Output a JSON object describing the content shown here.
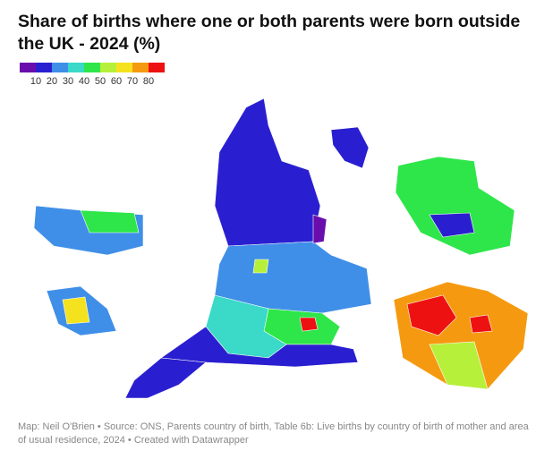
{
  "header": {
    "title": "Share of births where one or both parents were born outside the UK - 2024 (%)"
  },
  "legend": {
    "colors": [
      "#6a0dad",
      "#2a1fd0",
      "#3f8fe8",
      "#3ad9c8",
      "#2ee64a",
      "#b7f03a",
      "#f5e21e",
      "#f59a10",
      "#ee1111"
    ],
    "ticks": [
      10,
      20,
      30,
      40,
      50,
      60,
      70,
      80
    ]
  },
  "footer": {
    "source": "Map: Neil O'Brien • Source: ONS, Parents country of birth, Table 6b: Live births by country of birth of mother and area of usual residence, 2024 • Created with Datawrapper"
  }
}
